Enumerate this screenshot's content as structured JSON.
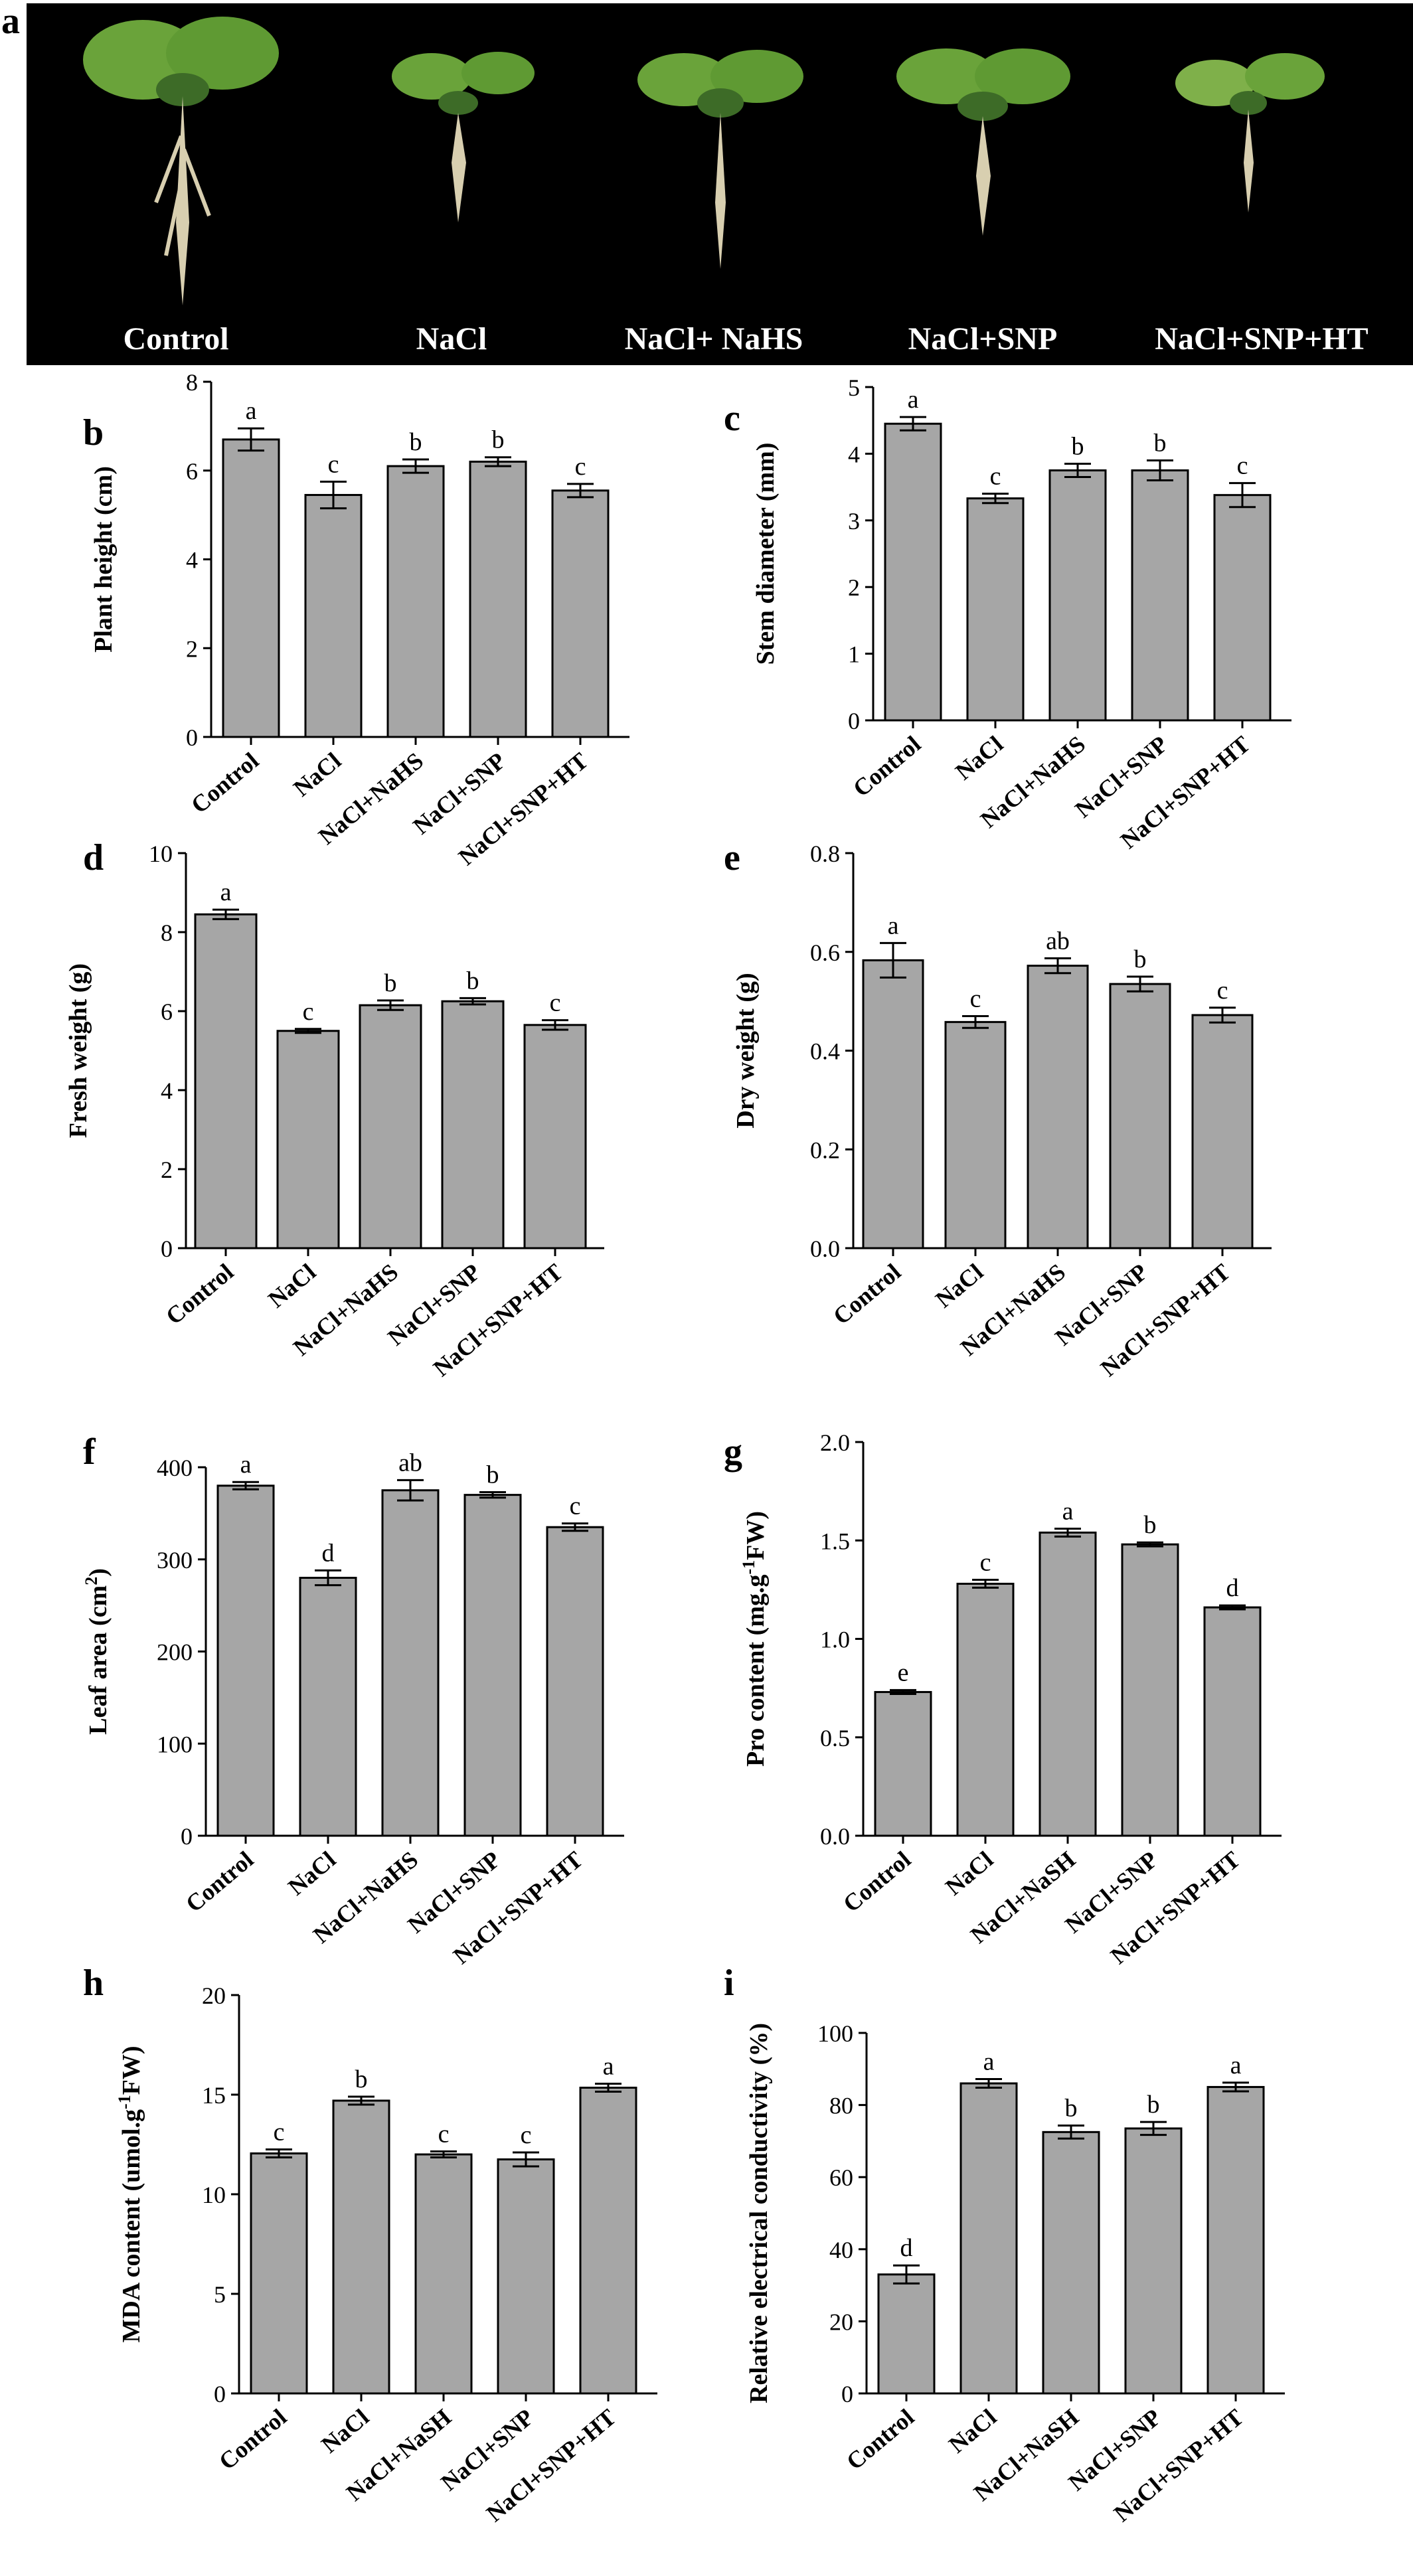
{
  "figure": {
    "photo_panel": {
      "letter": "a",
      "labels": [
        "Control",
        "NaCl",
        "NaCl+ NaHS",
        "NaCl+SNP",
        "NaCl+SNP+HT"
      ]
    }
  },
  "colors": {
    "bar": "#a6a6a6",
    "axis": "#000000",
    "photo_background": "#000000",
    "leaf": "#6aa33a",
    "root": "#d8cfb0"
  },
  "chart_data": [
    {
      "panel": "b",
      "type": "bar",
      "ylabel": "Plant height (cm)",
      "categories": [
        "Control",
        "NaCl",
        "NaCl+NaHS",
        "NaCl+SNP",
        "NaCl+SNP+HT"
      ],
      "values": [
        6.7,
        5.45,
        6.1,
        6.2,
        5.55
      ],
      "errors": [
        0.25,
        0.3,
        0.15,
        0.1,
        0.15
      ],
      "letters": [
        "a",
        "c",
        "b",
        "b",
        "c"
      ],
      "ylim": [
        0,
        8
      ],
      "yticks": [
        "0",
        "2",
        "4",
        "6",
        "8"
      ]
    },
    {
      "panel": "c",
      "type": "bar",
      "ylabel": "Stem diameter (mm)",
      "categories": [
        "Control",
        "NaCl",
        "NaCl+NaHS",
        "NaCl+SNP",
        "NaCl+SNP+HT"
      ],
      "values": [
        4.45,
        3.33,
        3.75,
        3.75,
        3.38
      ],
      "errors": [
        0.1,
        0.07,
        0.1,
        0.15,
        0.18
      ],
      "letters": [
        "a",
        "c",
        "b",
        "b",
        "c"
      ],
      "ylim": [
        0,
        5
      ],
      "yticks": [
        "0",
        "1",
        "2",
        "3",
        "4",
        "5"
      ]
    },
    {
      "panel": "d",
      "type": "bar",
      "ylabel": "Fresh weight  (g)",
      "categories": [
        "Control",
        "NaCl",
        "NaCl+NaHS",
        "NaCl+SNP",
        "NaCl+SNP+HT"
      ],
      "values": [
        8.45,
        5.5,
        6.15,
        6.25,
        5.65
      ],
      "errors": [
        0.12,
        0.05,
        0.12,
        0.08,
        0.12
      ],
      "letters": [
        "a",
        "c",
        "b",
        "b",
        "c"
      ],
      "ylim": [
        0,
        10
      ],
      "yticks": [
        "0",
        "2",
        "4",
        "6",
        "8",
        "10"
      ]
    },
    {
      "panel": "e",
      "type": "bar",
      "ylabel": "Dry weight (g)",
      "categories": [
        "Control",
        "NaCl",
        "NaCl+NaHS",
        "NaCl+SNP",
        "NaCl+SNP+HT"
      ],
      "values": [
        0.583,
        0.458,
        0.572,
        0.535,
        0.472
      ],
      "errors": [
        0.035,
        0.012,
        0.015,
        0.015,
        0.015
      ],
      "letters": [
        "a",
        "c",
        "ab",
        "b",
        "c"
      ],
      "ylim": [
        0,
        0.8
      ],
      "yticks": [
        "0.0",
        "0.2",
        "0.4",
        "0.6",
        "0.8"
      ]
    },
    {
      "panel": "f",
      "type": "bar",
      "ylabel": "Leaf area (cm2)",
      "ylabel_parts": [
        "Leaf area (cm",
        "2",
        ")"
      ],
      "categories": [
        "Control",
        "NaCl",
        "NaCl+NaHS",
        "NaCl+SNP",
        "NaCl+SNP+HT"
      ],
      "values": [
        380,
        280,
        375,
        370,
        335
      ],
      "errors": [
        4,
        8,
        11,
        3,
        4
      ],
      "letters": [
        "a",
        "d",
        "ab",
        "b",
        "c"
      ],
      "ylim": [
        0,
        400
      ],
      "yticks": [
        "0",
        "100",
        "200",
        "300",
        "400"
      ]
    },
    {
      "panel": "g",
      "type": "bar",
      "ylabel": "Pro content (mg.g-1FW)",
      "ylabel_parts": [
        "Pro content (mg.g",
        "-1",
        "FW)"
      ],
      "categories": [
        "Control",
        "NaCl",
        "NaCl+NaSH",
        "NaCl+SNP",
        "NaCl+SNP+HT"
      ],
      "values": [
        0.73,
        1.28,
        1.54,
        1.48,
        1.16
      ],
      "errors": [
        0.01,
        0.02,
        0.02,
        0.01,
        0.01
      ],
      "letters": [
        "e",
        "c",
        "a",
        "b",
        "d"
      ],
      "ylim": [
        0,
        2
      ],
      "yticks": [
        "0.0",
        "0.5",
        "1.0",
        "1.5",
        "2.0"
      ]
    },
    {
      "panel": "h",
      "type": "bar",
      "ylabel": "MDA content (umol.g-1FW)",
      "ylabel_parts": [
        "MDA content (umol.g",
        "-1",
        "FW)"
      ],
      "categories": [
        "Control",
        "NaCl",
        "NaCl+NaSH",
        "NaCl+SNP",
        "NaCl+SNP+HT"
      ],
      "values": [
        12.05,
        14.7,
        12.0,
        11.75,
        15.35
      ],
      "errors": [
        0.2,
        0.2,
        0.15,
        0.35,
        0.2
      ],
      "letters": [
        "c",
        "b",
        "c",
        "c",
        "a"
      ],
      "ylim": [
        0,
        20
      ],
      "yticks": [
        "0",
        "5",
        "10",
        "15",
        "20"
      ]
    },
    {
      "panel": "i",
      "type": "bar",
      "ylabel": "Relative electrical conductivity (%)",
      "categories": [
        "Control",
        "NaCl",
        "NaCl+NaSH",
        "NaCl+SNP",
        "NaCl+SNP+HT"
      ],
      "values": [
        33,
        86,
        72.5,
        73.5,
        85
      ],
      "errors": [
        2.5,
        1.2,
        1.8,
        1.8,
        1.2
      ],
      "letters": [
        "d",
        "a",
        "b",
        "b",
        "a"
      ],
      "ylim": [
        0,
        100
      ],
      "yticks": [
        "0",
        "20",
        "40",
        "60",
        "80",
        "100"
      ]
    }
  ]
}
